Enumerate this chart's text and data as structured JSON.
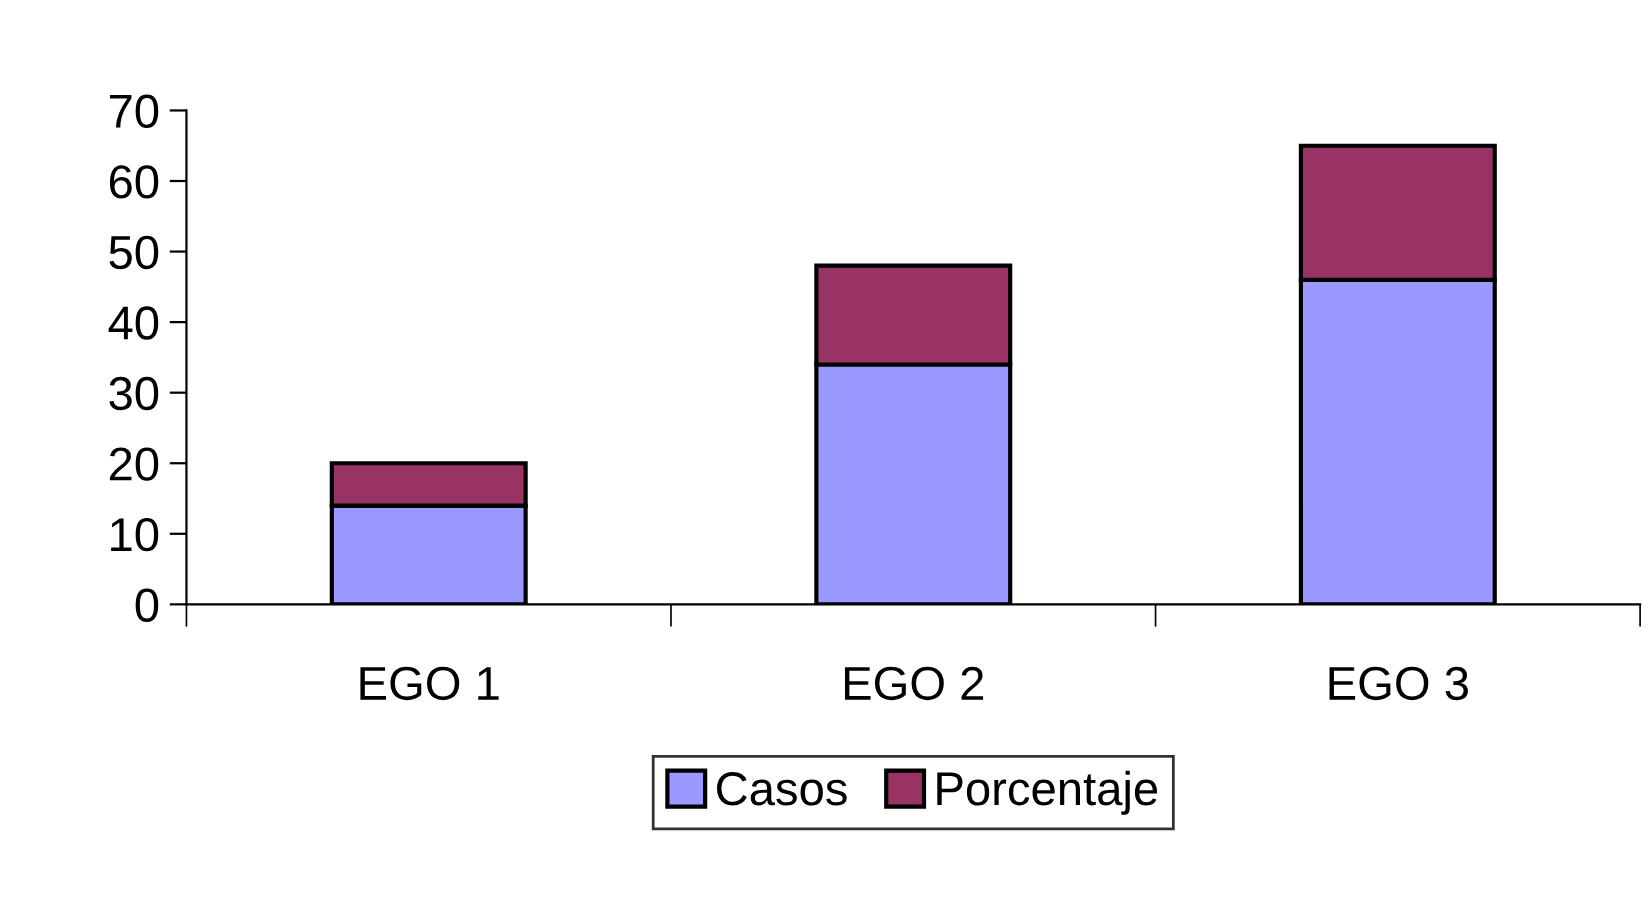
{
  "chart_data": {
    "type": "bar",
    "stacked": true,
    "categories": [
      "EGO 1",
      "EGO 2",
      "EGO 3"
    ],
    "series": [
      {
        "name": "Casos",
        "color": "#9999ff",
        "values": [
          14,
          34,
          46
        ]
      },
      {
        "name": "Porcentaje",
        "color": "#993366",
        "values": [
          6,
          14,
          19
        ]
      }
    ],
    "ylim": [
      0,
      70
    ],
    "yticks": [
      0,
      10,
      20,
      30,
      40,
      50,
      60,
      70
    ],
    "grid": false,
    "legend": "bottom"
  }
}
